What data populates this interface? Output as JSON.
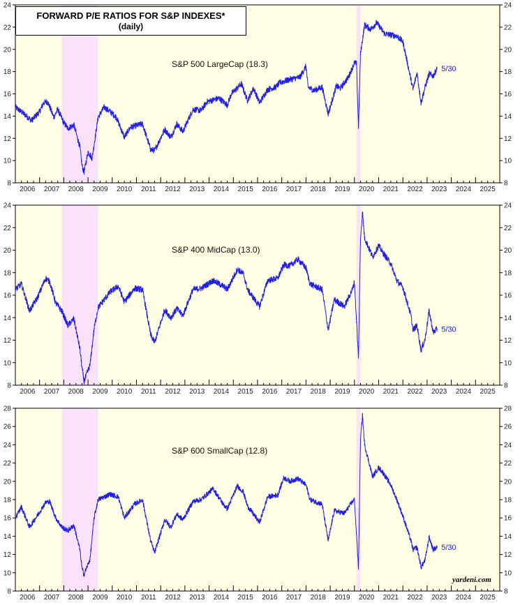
{
  "title": "FORWARD P/E RATIOS FOR S&P INDEXES*",
  "subtitle": "(daily)",
  "credit": "yardeni.com",
  "colors": {
    "background": "#fffde3",
    "recession": "#fbe2fb",
    "line": "#1f1fe6",
    "frame": "#000000"
  },
  "chart_data": [
    {
      "type": "line",
      "series": [
        {
          "name": "S&P 500 LargeCap (18.3)",
          "x": [
            "2006-01",
            "2006-06",
            "2006-09",
            "2007-01",
            "2007-03",
            "2007-05",
            "2007-08",
            "2007-10",
            "2008-01",
            "2008-03",
            "2008-06",
            "2008-09",
            "2008-10",
            "2008-11",
            "2009-01",
            "2009-03",
            "2009-06",
            "2009-09",
            "2009-12",
            "2010-03",
            "2010-07",
            "2010-10",
            "2011-04",
            "2011-08",
            "2011-10",
            "2012-03",
            "2012-06",
            "2012-09",
            "2012-12",
            "2013-05",
            "2013-09",
            "2013-12",
            "2014-06",
            "2014-10",
            "2014-12",
            "2015-05",
            "2015-08",
            "2015-11",
            "2016-02",
            "2016-06",
            "2016-10",
            "2016-12",
            "2017-05",
            "2017-10",
            "2018-01",
            "2018-02",
            "2018-05",
            "2018-09",
            "2018-12",
            "2019-04",
            "2019-06",
            "2019-10",
            "2020-01",
            "2020-02",
            "2020-03",
            "2020-04",
            "2020-06",
            "2020-09",
            "2020-12",
            "2021-04",
            "2021-07",
            "2021-10",
            "2022-01",
            "2022-03",
            "2022-06",
            "2022-08",
            "2022-10",
            "2022-12",
            "2023-02",
            "2023-04",
            "2023-05-30"
          ],
          "y": [
            14.8,
            14.1,
            13.6,
            14.4,
            15.2,
            15.3,
            13.9,
            14.6,
            13.4,
            12.9,
            13.2,
            11.2,
            9.6,
            8.9,
            10.8,
            10.2,
            13.9,
            14.8,
            14.4,
            13.9,
            12.1,
            13.0,
            13.3,
            11.0,
            10.9,
            12.8,
            12.1,
            13.3,
            12.6,
            14.6,
            14.5,
            15.3,
            15.6,
            15.0,
            16.0,
            16.9,
            15.4,
            16.5,
            15.2,
            16.4,
            16.6,
            17.0,
            17.3,
            17.5,
            18.5,
            16.6,
            16.3,
            16.6,
            14.2,
            16.7,
            16.5,
            17.5,
            18.8,
            18.7,
            13.0,
            19.6,
            22.2,
            21.8,
            22.4,
            21.4,
            21.3,
            21.2,
            20.7,
            19.0,
            16.4,
            17.9,
            15.2,
            16.6,
            17.8,
            17.6,
            18.3
          ]
        }
      ],
      "ylim": [
        8,
        24
      ],
      "yticks": [
        8,
        10,
        12,
        14,
        16,
        18,
        20,
        22,
        24
      ],
      "xlim": [
        "2006-01",
        "2026-01"
      ],
      "xticks": [
        "2006",
        "2007",
        "2008",
        "2009",
        "2010",
        "2011",
        "2012",
        "2013",
        "2014",
        "2015",
        "2016",
        "2017",
        "2018",
        "2019",
        "2020",
        "2021",
        "2022",
        "2023",
        "2024",
        "2025"
      ],
      "recessions": [
        [
          "2007-12",
          "2009-06"
        ],
        [
          "2020-02",
          "2020-04"
        ]
      ],
      "annotation": "5/30",
      "grid": false,
      "legend": "none"
    },
    {
      "type": "line",
      "series": [
        {
          "name": "S&P 400 MidCap (13.0)",
          "x": [
            "2006-01",
            "2006-04",
            "2006-08",
            "2006-12",
            "2007-04",
            "2007-06",
            "2007-09",
            "2007-12",
            "2008-03",
            "2008-06",
            "2008-09",
            "2008-10",
            "2008-11",
            "2009-02",
            "2009-04",
            "2009-06",
            "2009-12",
            "2010-04",
            "2010-07",
            "2010-12",
            "2011-04",
            "2011-08",
            "2011-10",
            "2012-03",
            "2012-06",
            "2012-09",
            "2012-12",
            "2013-05",
            "2013-09",
            "2014-03",
            "2014-08",
            "2014-10",
            "2015-03",
            "2015-06",
            "2015-08",
            "2016-02",
            "2016-06",
            "2016-11",
            "2017-02",
            "2017-05",
            "2017-09",
            "2018-01",
            "2018-03",
            "2018-09",
            "2018-12",
            "2019-03",
            "2019-08",
            "2019-12",
            "2020-01",
            "2020-03",
            "2020-04",
            "2020-05",
            "2020-06",
            "2020-10",
            "2021-01",
            "2021-03",
            "2021-07",
            "2021-10",
            "2022-01",
            "2022-05",
            "2022-06",
            "2022-08",
            "2022-10",
            "2022-12",
            "2023-02",
            "2023-04",
            "2023-05-30"
          ],
          "y": [
            16.5,
            17.0,
            14.6,
            15.8,
            17.5,
            17.2,
            15.3,
            14.6,
            13.3,
            13.9,
            11.2,
            9.6,
            8.3,
            9.8,
            13.0,
            14.9,
            16.3,
            16.8,
            15.4,
            16.6,
            16.5,
            12.5,
            11.8,
            14.7,
            14.0,
            14.8,
            14.2,
            16.5,
            16.6,
            17.3,
            16.8,
            16.5,
            18.3,
            17.9,
            16.5,
            15.0,
            17.3,
            17.5,
            18.7,
            18.6,
            19.2,
            18.4,
            17.0,
            16.5,
            12.9,
            15.6,
            15.0,
            16.5,
            17.2,
            10.4,
            21.0,
            23.4,
            21.1,
            19.4,
            20.4,
            19.8,
            18.8,
            17.3,
            16.7,
            14.2,
            12.9,
            13.3,
            11.1,
            12.1,
            14.6,
            12.7,
            13.0
          ]
        }
      ],
      "ylim": [
        8,
        24
      ],
      "yticks": [
        8,
        10,
        12,
        14,
        16,
        18,
        20,
        22,
        24
      ],
      "xlim": [
        "2006-01",
        "2026-01"
      ],
      "xticks": [
        "2006",
        "2007",
        "2008",
        "2009",
        "2010",
        "2011",
        "2012",
        "2013",
        "2014",
        "2015",
        "2016",
        "2017",
        "2018",
        "2019",
        "2020",
        "2021",
        "2022",
        "2023",
        "2024",
        "2025"
      ],
      "recessions": [
        [
          "2007-12",
          "2009-06"
        ],
        [
          "2020-02",
          "2020-04"
        ]
      ],
      "annotation": "5/30",
      "grid": false,
      "legend": "none"
    },
    {
      "type": "line",
      "series": [
        {
          "name": "S&P 600 SmallCap (12.8)",
          "x": [
            "2006-01",
            "2006-04",
            "2006-08",
            "2006-12",
            "2007-04",
            "2007-06",
            "2007-09",
            "2007-12",
            "2008-03",
            "2008-06",
            "2008-09",
            "2008-10",
            "2008-11",
            "2009-02",
            "2009-04",
            "2009-06",
            "2009-12",
            "2010-04",
            "2010-07",
            "2010-12",
            "2011-04",
            "2011-08",
            "2011-10",
            "2012-03",
            "2012-06",
            "2012-09",
            "2012-12",
            "2013-05",
            "2013-09",
            "2014-03",
            "2014-08",
            "2014-10",
            "2015-03",
            "2015-06",
            "2015-08",
            "2016-02",
            "2016-06",
            "2016-11",
            "2017-02",
            "2017-05",
            "2017-09",
            "2018-01",
            "2018-03",
            "2018-09",
            "2018-12",
            "2019-03",
            "2019-08",
            "2019-12",
            "2020-01",
            "2020-03",
            "2020-04",
            "2020-05",
            "2020-06",
            "2020-10",
            "2021-01",
            "2021-03",
            "2021-07",
            "2021-10",
            "2022-01",
            "2022-05",
            "2022-06",
            "2022-08",
            "2022-10",
            "2022-12",
            "2023-02",
            "2023-04",
            "2023-05-30"
          ],
          "y": [
            16.0,
            17.2,
            15.0,
            16.3,
            17.7,
            17.8,
            16.0,
            15.0,
            14.6,
            15.2,
            12.5,
            10.5,
            9.8,
            11.5,
            16.0,
            18.0,
            18.6,
            18.3,
            16.0,
            17.5,
            18.0,
            13.5,
            12.2,
            15.8,
            15.0,
            16.4,
            15.8,
            17.8,
            18.0,
            19.2,
            17.5,
            17.0,
            19.5,
            18.8,
            17.3,
            15.5,
            18.3,
            18.5,
            20.4,
            20.0,
            20.3,
            19.6,
            18.0,
            17.5,
            13.5,
            16.8,
            16.5,
            17.8,
            18.0,
            10.5,
            24.5,
            27.3,
            24.0,
            20.5,
            21.5,
            21.0,
            19.6,
            18.0,
            16.2,
            13.5,
            12.5,
            12.8,
            10.6,
            11.4,
            13.9,
            12.5,
            12.8
          ]
        }
      ],
      "ylim": [
        8,
        28
      ],
      "yticks": [
        8,
        10,
        12,
        14,
        16,
        18,
        20,
        22,
        24,
        26,
        28
      ],
      "xlim": [
        "2006-01",
        "2026-01"
      ],
      "xticks": [
        "2006",
        "2007",
        "2008",
        "2009",
        "2010",
        "2011",
        "2012",
        "2013",
        "2014",
        "2015",
        "2016",
        "2017",
        "2018",
        "2019",
        "2020",
        "2021",
        "2022",
        "2023",
        "2024",
        "2025"
      ],
      "recessions": [
        [
          "2007-12",
          "2009-06"
        ],
        [
          "2020-02",
          "2020-04"
        ]
      ],
      "annotation": "5/30",
      "grid": false,
      "legend": "none"
    }
  ]
}
